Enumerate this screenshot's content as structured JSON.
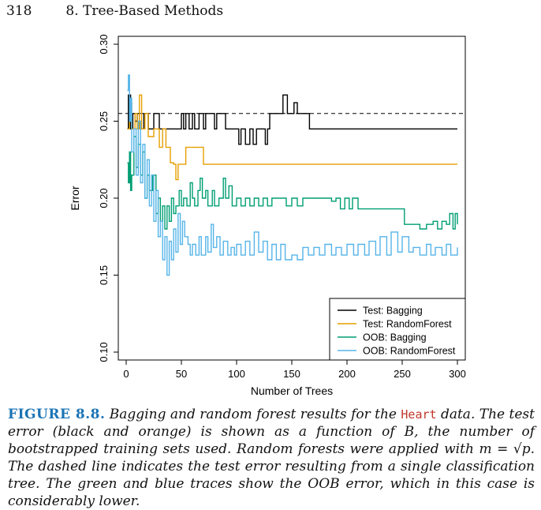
{
  "header": {
    "page_number": "318",
    "section": "8. Tree-Based Methods"
  },
  "caption": {
    "label": "FIGURE 8.8.",
    "text_1": "Bagging and random forest results for the ",
    "dataset": "Heart",
    "text_2": " data. The test error (black and orange) is shown as a function of B, the number of bootstrapped training sets used. Random forests were applied with m = √p. The dashed line indicates the test error resulting from a single classification tree. The green and blue traces show the OOB error, which in this case is considerably lower."
  },
  "chart_data": {
    "type": "line",
    "xlabel": "Number of Trees",
    "ylabel": "Error",
    "xlim": [
      0,
      300
    ],
    "ylim": [
      0.1,
      0.3
    ],
    "xticks": [
      0,
      50,
      100,
      150,
      200,
      250,
      300
    ],
    "yticks": [
      "0.10",
      "0.15",
      "0.20",
      "0.25",
      "0.30"
    ],
    "dashed_line": {
      "y": 0.255
    },
    "legend_position": "bottom-right",
    "series": [
      {
        "name": "Test: Bagging",
        "color": "#000000",
        "points": [
          [
            1,
            0.245
          ],
          [
            2,
            0.267
          ],
          [
            4,
            0.245
          ],
          [
            6,
            0.255
          ],
          [
            8,
            0.25
          ],
          [
            10,
            0.255
          ],
          [
            12,
            0.245
          ],
          [
            16,
            0.255
          ],
          [
            20,
            0.245
          ],
          [
            25,
            0.255
          ],
          [
            30,
            0.245
          ],
          [
            48,
            0.245
          ],
          [
            50,
            0.255
          ],
          [
            52,
            0.245
          ],
          [
            54,
            0.255
          ],
          [
            57,
            0.245
          ],
          [
            60,
            0.255
          ],
          [
            62,
            0.245
          ],
          [
            66,
            0.255
          ],
          [
            70,
            0.245
          ],
          [
            72,
            0.255
          ],
          [
            80,
            0.245
          ],
          [
            82,
            0.255
          ],
          [
            90,
            0.245
          ],
          [
            100,
            0.245
          ],
          [
            102,
            0.235
          ],
          [
            104,
            0.245
          ],
          [
            108,
            0.235
          ],
          [
            112,
            0.245
          ],
          [
            115,
            0.235
          ],
          [
            118,
            0.245
          ],
          [
            123,
            0.245
          ],
          [
            126,
            0.235
          ],
          [
            128,
            0.245
          ],
          [
            130,
            0.255
          ],
          [
            140,
            0.255
          ],
          [
            142,
            0.267
          ],
          [
            146,
            0.255
          ],
          [
            150,
            0.255
          ],
          [
            152,
            0.262
          ],
          [
            155,
            0.255
          ],
          [
            160,
            0.255
          ],
          [
            165,
            0.255
          ],
          [
            166,
            0.245
          ],
          [
            300,
            0.245
          ]
        ]
      },
      {
        "name": "Test: RandomForest",
        "color": "#e69f00",
        "points": [
          [
            1,
            0.245
          ],
          [
            3,
            0.262
          ],
          [
            5,
            0.245
          ],
          [
            8,
            0.255
          ],
          [
            10,
            0.245
          ],
          [
            12,
            0.267
          ],
          [
            14,
            0.245
          ],
          [
            17,
            0.255
          ],
          [
            20,
            0.24
          ],
          [
            25,
            0.245
          ],
          [
            30,
            0.233
          ],
          [
            33,
            0.245
          ],
          [
            36,
            0.233
          ],
          [
            40,
            0.223
          ],
          [
            43,
            0.222
          ],
          [
            45,
            0.212
          ],
          [
            47,
            0.222
          ],
          [
            50,
            0.222
          ],
          [
            54,
            0.233
          ],
          [
            60,
            0.233
          ],
          [
            68,
            0.233
          ],
          [
            70,
            0.222
          ],
          [
            300,
            0.222
          ]
        ]
      },
      {
        "name": "OOB: Bagging",
        "color": "#009e73",
        "points": [
          [
            1,
            0.223
          ],
          [
            2,
            0.21
          ],
          [
            3,
            0.23
          ],
          [
            4,
            0.205
          ],
          [
            5,
            0.215
          ],
          [
            7,
            0.24
          ],
          [
            9,
            0.22
          ],
          [
            11,
            0.235
          ],
          [
            13,
            0.215
          ],
          [
            15,
            0.23
          ],
          [
            17,
            0.2
          ],
          [
            19,
            0.215
          ],
          [
            21,
            0.205
          ],
          [
            24,
            0.215
          ],
          [
            27,
            0.19
          ],
          [
            29,
            0.2
          ],
          [
            31,
            0.185
          ],
          [
            33,
            0.195
          ],
          [
            35,
            0.18
          ],
          [
            37,
            0.195
          ],
          [
            39,
            0.185
          ],
          [
            41,
            0.2
          ],
          [
            43,
            0.19
          ],
          [
            45,
            0.195
          ],
          [
            48,
            0.205
          ],
          [
            50,
            0.195
          ],
          [
            52,
            0.2
          ],
          [
            55,
            0.195
          ],
          [
            58,
            0.21
          ],
          [
            60,
            0.2
          ],
          [
            62,
            0.195
          ],
          [
            65,
            0.205
          ],
          [
            67,
            0.213
          ],
          [
            69,
            0.2
          ],
          [
            72,
            0.205
          ],
          [
            74,
            0.195
          ],
          [
            78,
            0.205
          ],
          [
            80,
            0.195
          ],
          [
            84,
            0.2
          ],
          [
            88,
            0.213
          ],
          [
            90,
            0.2
          ],
          [
            93,
            0.208
          ],
          [
            96,
            0.195
          ],
          [
            100,
            0.2
          ],
          [
            104,
            0.195
          ],
          [
            108,
            0.2
          ],
          [
            112,
            0.195
          ],
          [
            116,
            0.2
          ],
          [
            120,
            0.195
          ],
          [
            124,
            0.2
          ],
          [
            128,
            0.195
          ],
          [
            132,
            0.2
          ],
          [
            140,
            0.2
          ],
          [
            145,
            0.195
          ],
          [
            150,
            0.2
          ],
          [
            155,
            0.195
          ],
          [
            160,
            0.2
          ],
          [
            170,
            0.2
          ],
          [
            180,
            0.2
          ],
          [
            186,
            0.198
          ],
          [
            190,
            0.2
          ],
          [
            194,
            0.193
          ],
          [
            198,
            0.2
          ],
          [
            202,
            0.193
          ],
          [
            205,
            0.2
          ],
          [
            210,
            0.193
          ],
          [
            220,
            0.193
          ],
          [
            230,
            0.193
          ],
          [
            240,
            0.193
          ],
          [
            250,
            0.193
          ],
          [
            252,
            0.183
          ],
          [
            260,
            0.183
          ],
          [
            266,
            0.18
          ],
          [
            272,
            0.183
          ],
          [
            278,
            0.185
          ],
          [
            282,
            0.18
          ],
          [
            286,
            0.185
          ],
          [
            290,
            0.183
          ],
          [
            293,
            0.19
          ],
          [
            296,
            0.18
          ],
          [
            298,
            0.19
          ],
          [
            300,
            0.183
          ]
        ]
      },
      {
        "name": "OOB: RandomForest",
        "color": "#56b4e9",
        "points": [
          [
            1,
            0.27
          ],
          [
            2,
            0.28
          ],
          [
            3,
            0.25
          ],
          [
            4,
            0.265
          ],
          [
            5,
            0.23
          ],
          [
            7,
            0.245
          ],
          [
            9,
            0.215
          ],
          [
            11,
            0.25
          ],
          [
            13,
            0.21
          ],
          [
            15,
            0.235
          ],
          [
            17,
            0.2
          ],
          [
            19,
            0.225
          ],
          [
            21,
            0.195
          ],
          [
            23,
            0.215
          ],
          [
            25,
            0.185
          ],
          [
            27,
            0.205
          ],
          [
            29,
            0.175
          ],
          [
            31,
            0.185
          ],
          [
            33,
            0.16
          ],
          [
            35,
            0.175
          ],
          [
            37,
            0.15
          ],
          [
            39,
            0.172
          ],
          [
            41,
            0.16
          ],
          [
            43,
            0.18
          ],
          [
            45,
            0.165
          ],
          [
            47,
            0.19
          ],
          [
            49,
            0.17
          ],
          [
            51,
            0.185
          ],
          [
            53,
            0.175
          ],
          [
            56,
            0.17
          ],
          [
            58,
            0.163
          ],
          [
            60,
            0.17
          ],
          [
            63,
            0.163
          ],
          [
            66,
            0.175
          ],
          [
            68,
            0.163
          ],
          [
            72,
            0.175
          ],
          [
            74,
            0.165
          ],
          [
            77,
            0.183
          ],
          [
            79,
            0.168
          ],
          [
            82,
            0.175
          ],
          [
            85,
            0.163
          ],
          [
            88,
            0.172
          ],
          [
            92,
            0.163
          ],
          [
            95,
            0.168
          ],
          [
            98,
            0.163
          ],
          [
            100,
            0.17
          ],
          [
            104,
            0.163
          ],
          [
            108,
            0.172
          ],
          [
            112,
            0.163
          ],
          [
            116,
            0.178
          ],
          [
            120,
            0.165
          ],
          [
            124,
            0.172
          ],
          [
            128,
            0.16
          ],
          [
            132,
            0.17
          ],
          [
            136,
            0.16
          ],
          [
            140,
            0.17
          ],
          [
            144,
            0.16
          ],
          [
            150,
            0.163
          ],
          [
            155,
            0.16
          ],
          [
            160,
            0.168
          ],
          [
            165,
            0.163
          ],
          [
            170,
            0.168
          ],
          [
            175,
            0.163
          ],
          [
            180,
            0.17
          ],
          [
            186,
            0.163
          ],
          [
            190,
            0.168
          ],
          [
            195,
            0.163
          ],
          [
            200,
            0.17
          ],
          [
            206,
            0.163
          ],
          [
            210,
            0.17
          ],
          [
            216,
            0.163
          ],
          [
            220,
            0.172
          ],
          [
            226,
            0.163
          ],
          [
            230,
            0.175
          ],
          [
            236,
            0.163
          ],
          [
            240,
            0.178
          ],
          [
            246,
            0.165
          ],
          [
            250,
            0.175
          ],
          [
            256,
            0.165
          ],
          [
            260,
            0.168
          ],
          [
            266,
            0.163
          ],
          [
            272,
            0.17
          ],
          [
            276,
            0.163
          ],
          [
            280,
            0.168
          ],
          [
            286,
            0.163
          ],
          [
            290,
            0.17
          ],
          [
            294,
            0.163
          ],
          [
            300,
            0.168
          ]
        ]
      }
    ]
  }
}
